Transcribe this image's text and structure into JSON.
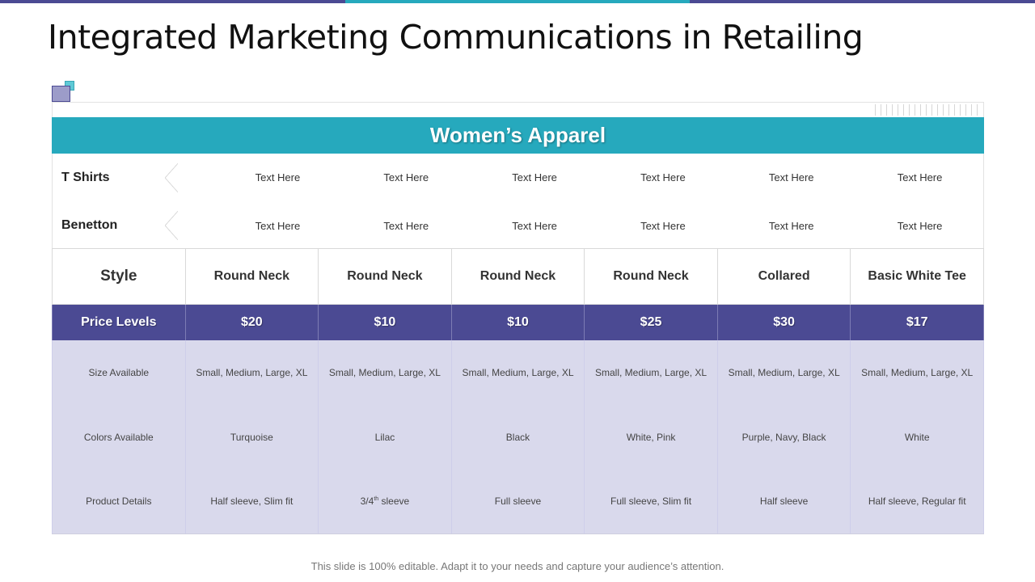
{
  "slide": {
    "title": "Integrated Marketing Communications in Retailing",
    "footer": "This slide is 100% editable. Adapt it to your needs and capture your audience’s attention."
  },
  "colors": {
    "primary": "#4b4a93",
    "accent": "#26a9bd",
    "body_fill": "#d9d9ec"
  },
  "banner": {
    "title": "Women’s Apparel"
  },
  "label_rows": [
    {
      "label": "T Shirts",
      "cells": [
        "Text Here",
        "Text Here",
        "Text Here",
        "Text Here",
        "Text Here",
        "Text Here"
      ]
    },
    {
      "label": "Benetton",
      "cells": [
        "Text Here",
        "Text Here",
        "Text Here",
        "Text Here",
        "Text Here",
        "Text Here"
      ]
    }
  ],
  "table": {
    "style": {
      "header": "Style",
      "values": [
        "Round Neck",
        "Round Neck",
        "Round Neck",
        "Round Neck",
        "Collared",
        "Basic White Tee"
      ]
    },
    "price": {
      "header": "Price Levels",
      "values": [
        "$20",
        "$10",
        "$10",
        "$25",
        "$30",
        "$17"
      ]
    },
    "rows": [
      {
        "header": "Size Available",
        "values": [
          "Small, Medium, Large, XL",
          "Small, Medium, Large, XL",
          "Small, Medium, Large, XL",
          "Small, Medium, Large, XL",
          "Small, Medium, Large, XL",
          "Small, Medium, Large, XL"
        ]
      },
      {
        "header": "Colors Available",
        "values": [
          "Turquoise",
          "Lilac",
          "Black",
          "White, Pink",
          "Purple, Navy,  Black",
          "White"
        ]
      },
      {
        "header": "Product Details",
        "values": [
          "Half sleeve, Slim fit",
          "",
          "Full sleeve",
          "Full sleeve, Slim fit",
          "Half sleeve",
          "Half sleeve, Regular fit"
        ]
      }
    ],
    "special_cell": {
      "number": "3/4",
      "sup": "th",
      "rest": " sleeve"
    }
  }
}
